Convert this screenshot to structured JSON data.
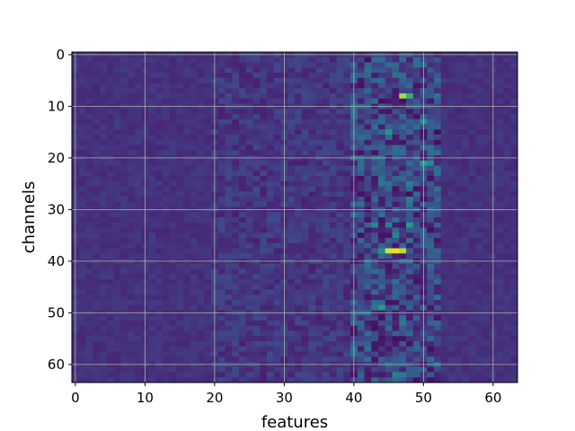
{
  "chart_data": {
    "type": "heatmap",
    "xlabel": "features",
    "ylabel": "channels",
    "x_ticks": [
      0,
      10,
      20,
      30,
      40,
      50,
      60
    ],
    "y_ticks": [
      0,
      10,
      20,
      30,
      40,
      50,
      60
    ],
    "xlim": [
      -0.5,
      63.5
    ],
    "ylim": [
      63.5,
      -0.5
    ],
    "n_rows": 64,
    "n_cols": 64,
    "colormap": "viridis",
    "grid": true,
    "value_range": [
      0,
      1
    ],
    "baseline_value": 0.18,
    "active_band_columns": [
      40,
      52
    ],
    "hotspots": [
      {
        "row": 8,
        "col": 47,
        "value": 0.92
      },
      {
        "row": 8,
        "col": 48,
        "value": 0.78
      },
      {
        "row": 13,
        "col": 50,
        "value": 0.62
      },
      {
        "row": 15,
        "col": 45,
        "value": 0.66
      },
      {
        "row": 21,
        "col": 50,
        "value": 0.7
      },
      {
        "row": 21,
        "col": 51,
        "value": 0.6
      },
      {
        "row": 25,
        "col": 44,
        "value": 0.5
      },
      {
        "row": 25,
        "col": 48,
        "value": 0.55
      },
      {
        "row": 28,
        "col": 48,
        "value": 0.55
      },
      {
        "row": 33,
        "col": 43,
        "value": 0.6
      },
      {
        "row": 33,
        "col": 45,
        "value": 0.55
      },
      {
        "row": 33,
        "col": 48,
        "value": 0.68
      },
      {
        "row": 35,
        "col": 46,
        "value": 0.58
      },
      {
        "row": 38,
        "col": 45,
        "value": 0.96
      },
      {
        "row": 38,
        "col": 46,
        "value": 0.98
      },
      {
        "row": 38,
        "col": 47,
        "value": 0.94
      },
      {
        "row": 38,
        "col": 44,
        "value": 0.62
      },
      {
        "row": 44,
        "col": 46,
        "value": 0.48
      },
      {
        "row": 49,
        "col": 44,
        "value": 0.7
      },
      {
        "row": 49,
        "col": 43,
        "value": 0.5
      },
      {
        "row": 52,
        "col": 47,
        "value": 0.5
      },
      {
        "row": 62,
        "col": 46,
        "value": 0.55
      },
      {
        "row": 62,
        "col": 47,
        "value": 0.52
      },
      {
        "row": 1,
        "col": 44,
        "value": 0.45
      },
      {
        "row": 1,
        "col": 47,
        "value": 0.42
      },
      {
        "row": 10,
        "col": 41,
        "value": 0.4
      }
    ]
  }
}
